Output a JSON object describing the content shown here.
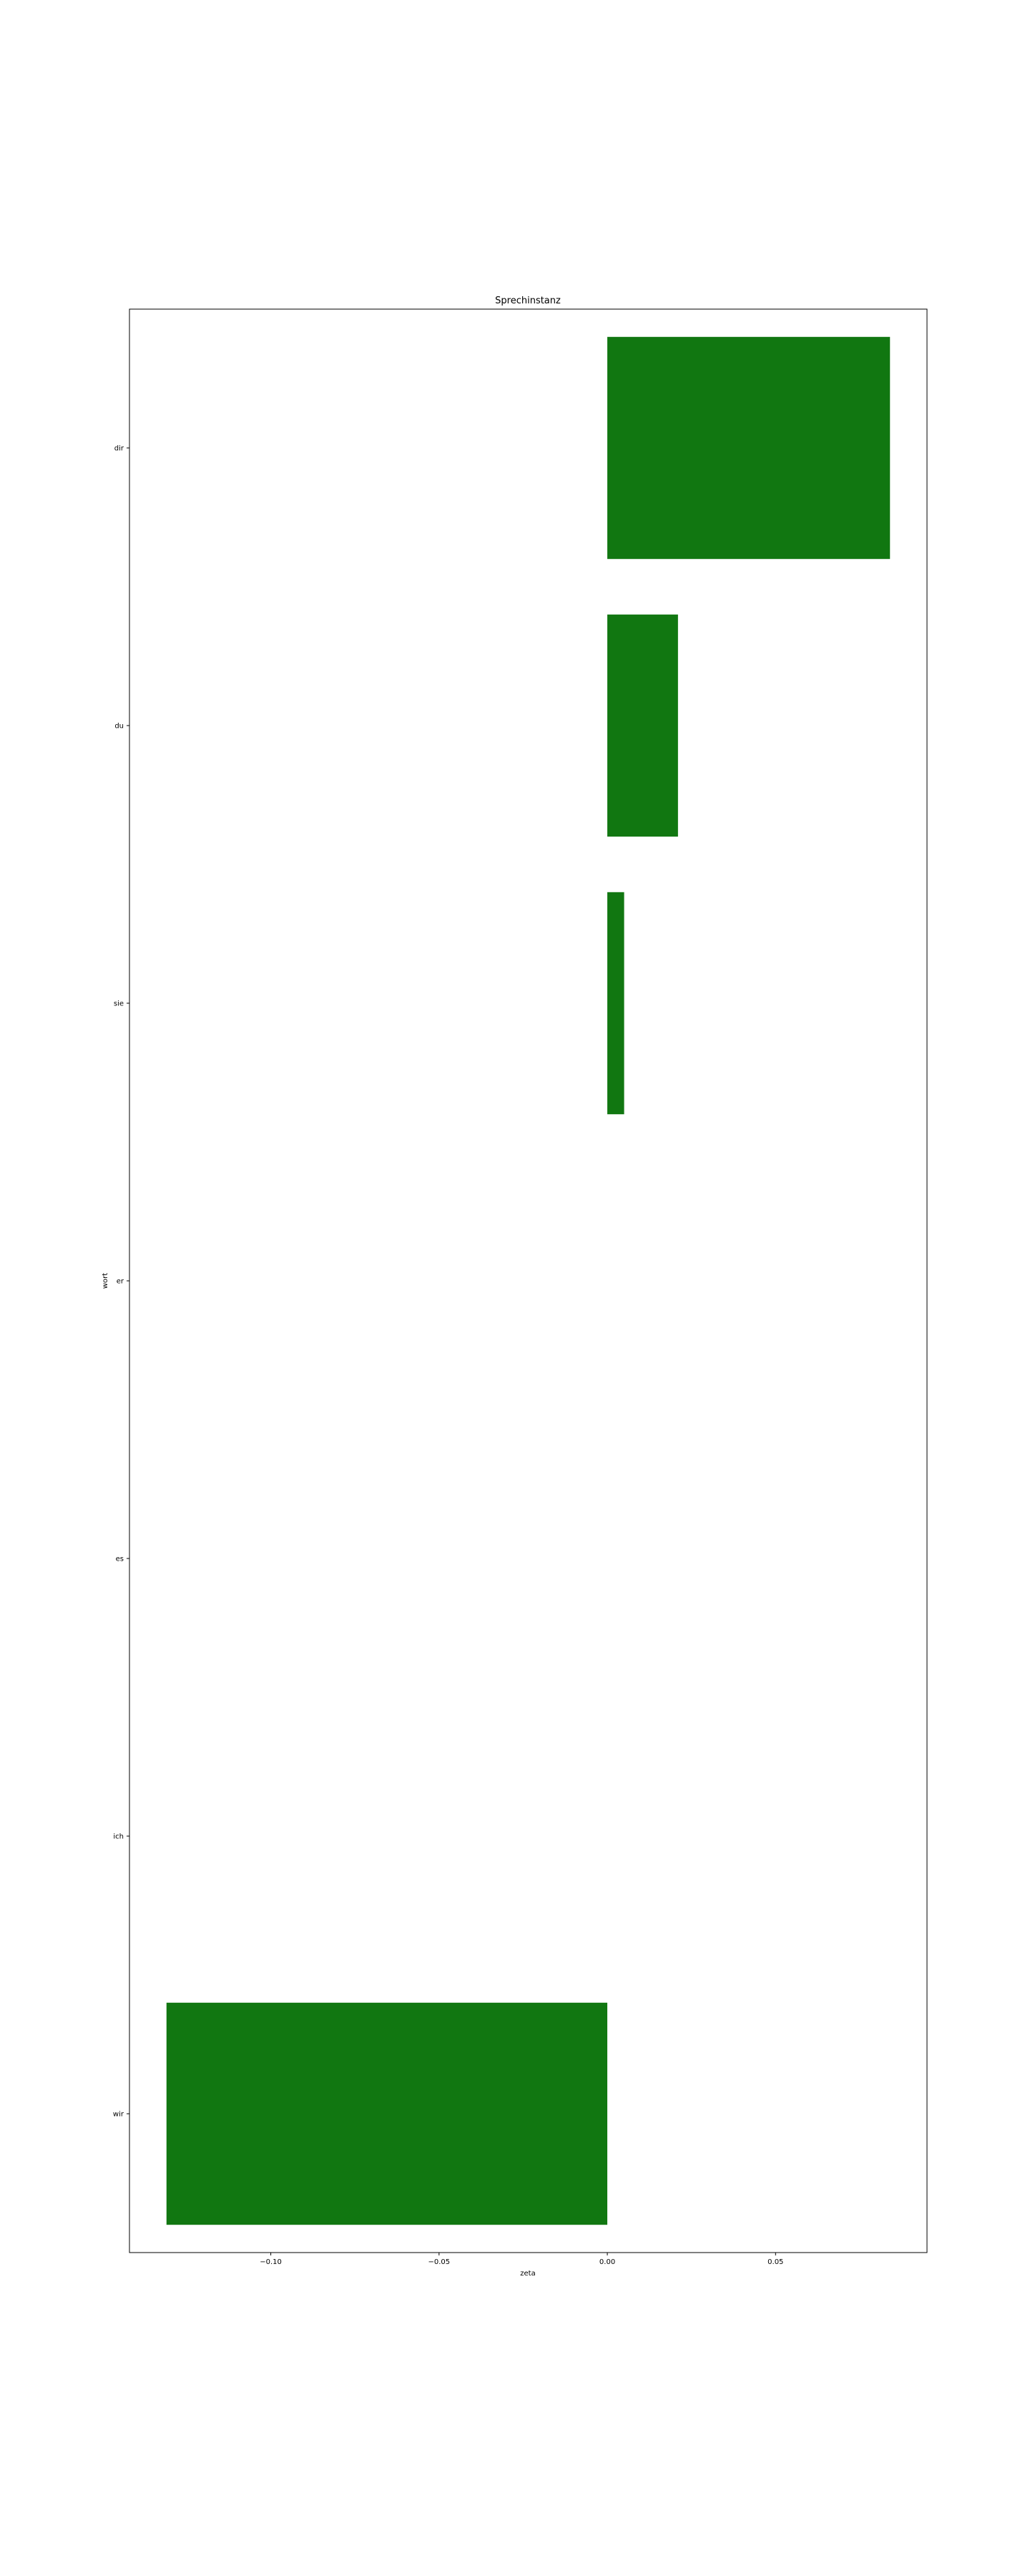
{
  "chart_data": {
    "type": "bar",
    "orientation": "horizontal",
    "title": "Sprechinstanz",
    "xlabel": "zeta",
    "ylabel": "wort",
    "categories": [
      "dir",
      "du",
      "sie",
      "er",
      "es",
      "ich",
      "wir"
    ],
    "values": [
      0.084,
      0.021,
      0.005,
      0.0,
      0.0,
      0.0,
      -0.131
    ],
    "xticks": [
      -0.1,
      -0.05,
      0.0,
      0.05
    ],
    "xtick_labels": [
      "−0.10",
      "−0.05",
      "0.00",
      "0.05"
    ],
    "xlim": [
      -0.142,
      0.095
    ],
    "grid": false,
    "bar_color": "#117711"
  }
}
